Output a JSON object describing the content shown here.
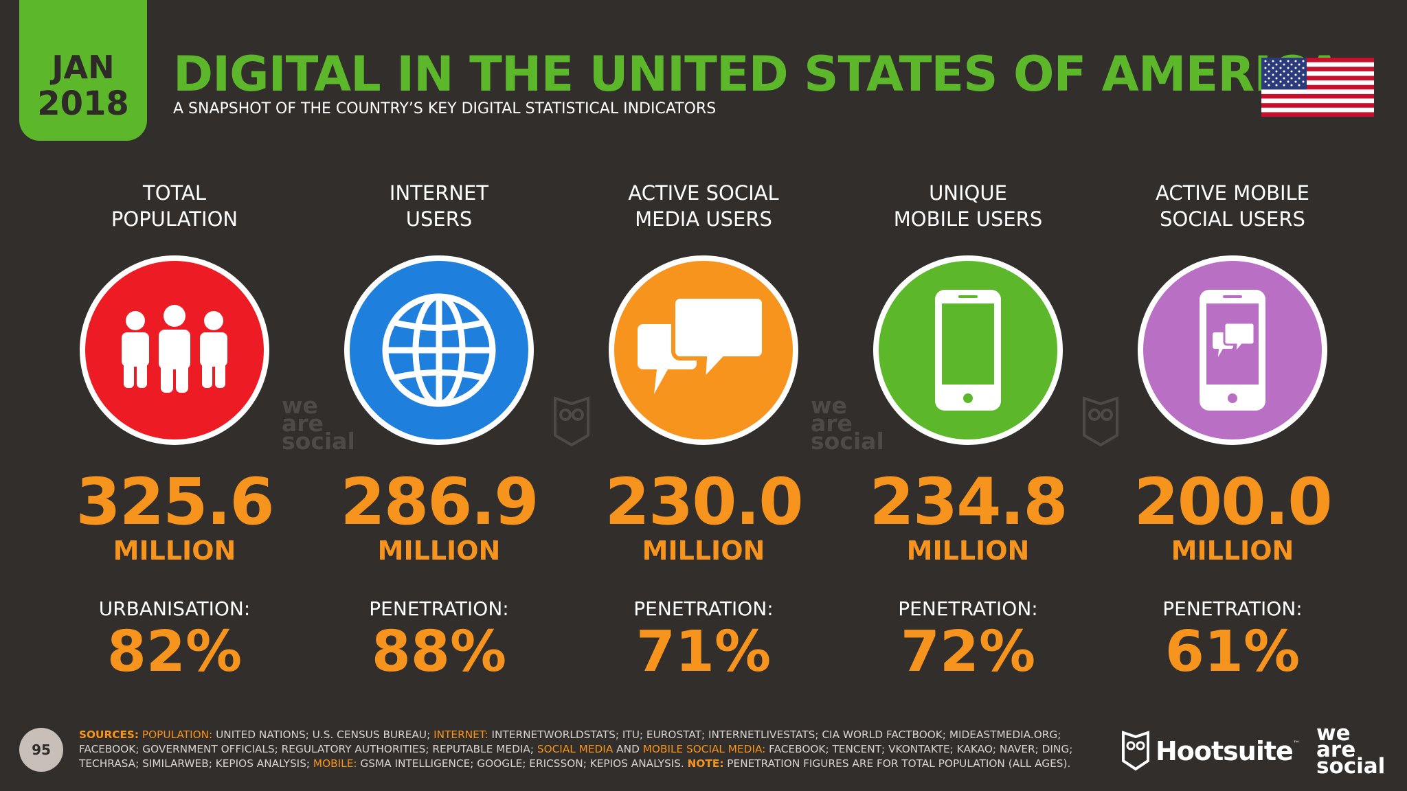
{
  "header": {
    "month": "JAN",
    "year": "2018",
    "title": "DIGITAL IN THE UNITED STATES OF AMERICA",
    "subtitle": "A SNAPSHOT OF THE COUNTRY’S KEY DIGITAL STATISTICAL INDICATORS"
  },
  "stats": [
    {
      "label_1": "TOTAL",
      "label_2": "POPULATION",
      "icon": "people-icon",
      "color": "#ed1c24",
      "value": "325.6",
      "unit": "MILLION",
      "sub_label": "URBANISATION:",
      "sub_value": "82%"
    },
    {
      "label_1": "INTERNET",
      "label_2": "USERS",
      "icon": "globe-icon",
      "color": "#1f7fdc",
      "value": "286.9",
      "unit": "MILLION",
      "sub_label": "PENETRATION:",
      "sub_value": "88%"
    },
    {
      "label_1": "ACTIVE SOCIAL",
      "label_2": "MEDIA USERS",
      "icon": "chat-bubbles-icon",
      "color": "#f7941d",
      "value": "230.0",
      "unit": "MILLION",
      "sub_label": "PENETRATION:",
      "sub_value": "71%"
    },
    {
      "label_1": "UNIQUE",
      "label_2": "MOBILE USERS",
      "icon": "mobile-phone-icon",
      "color": "#5cb82a",
      "value": "234.8",
      "unit": "MILLION",
      "sub_label": "PENETRATION:",
      "sub_value": "72%"
    },
    {
      "label_1": "ACTIVE MOBILE",
      "label_2": "SOCIAL USERS",
      "icon": "mobile-chat-icon",
      "color": "#b86fc4",
      "value": "200.0",
      "unit": "MILLION",
      "sub_label": "PENETRATION:",
      "sub_value": "61%"
    }
  ],
  "watermark": {
    "line_1": "we",
    "line_2": "are",
    "line_3": "social"
  },
  "footer": {
    "page_number": "95",
    "sources_key": "SOURCES:",
    "population_key": "POPULATION:",
    "population_text": " UNITED NATIONS; U.S. CENSUS BUREAU; ",
    "internet_key": "INTERNET:",
    "internet_text": " INTERNETWORLDSTATS; ITU; EUROSTAT; INTERNETLIVESTATS; CIA WORLD FACTBOOK; MIDEASTMEDIA.ORG; FACEBOOK; GOVERNMENT OFFICIALS; REGULATORY AUTHORITIES; REPUTABLE MEDIA; ",
    "social_key": "SOCIAL MEDIA",
    "and_text": " AND ",
    "mobile_social_key": "MOBILE SOCIAL MEDIA:",
    "social_text": " FACEBOOK; TENCENT; VKONTAKTE; KAKAO; NAVER; DING; TECHRASA; SIMILARWEB; KEPIOS ANALYSIS; ",
    "mobile_key": "MOBILE:",
    "mobile_text": " GSMA INTELLIGENCE; GOOGLE; ERICSSON; KEPIOS ANALYSIS. ",
    "note_key": "NOTE:",
    "note_text": " PENETRATION FIGURES ARE FOR TOTAL POPULATION (ALL AGES).",
    "hootsuite_brand": "Hootsuite",
    "hootsuite_tm": "™",
    "was_1": "we",
    "was_2": "are",
    "was_3": "social"
  }
}
